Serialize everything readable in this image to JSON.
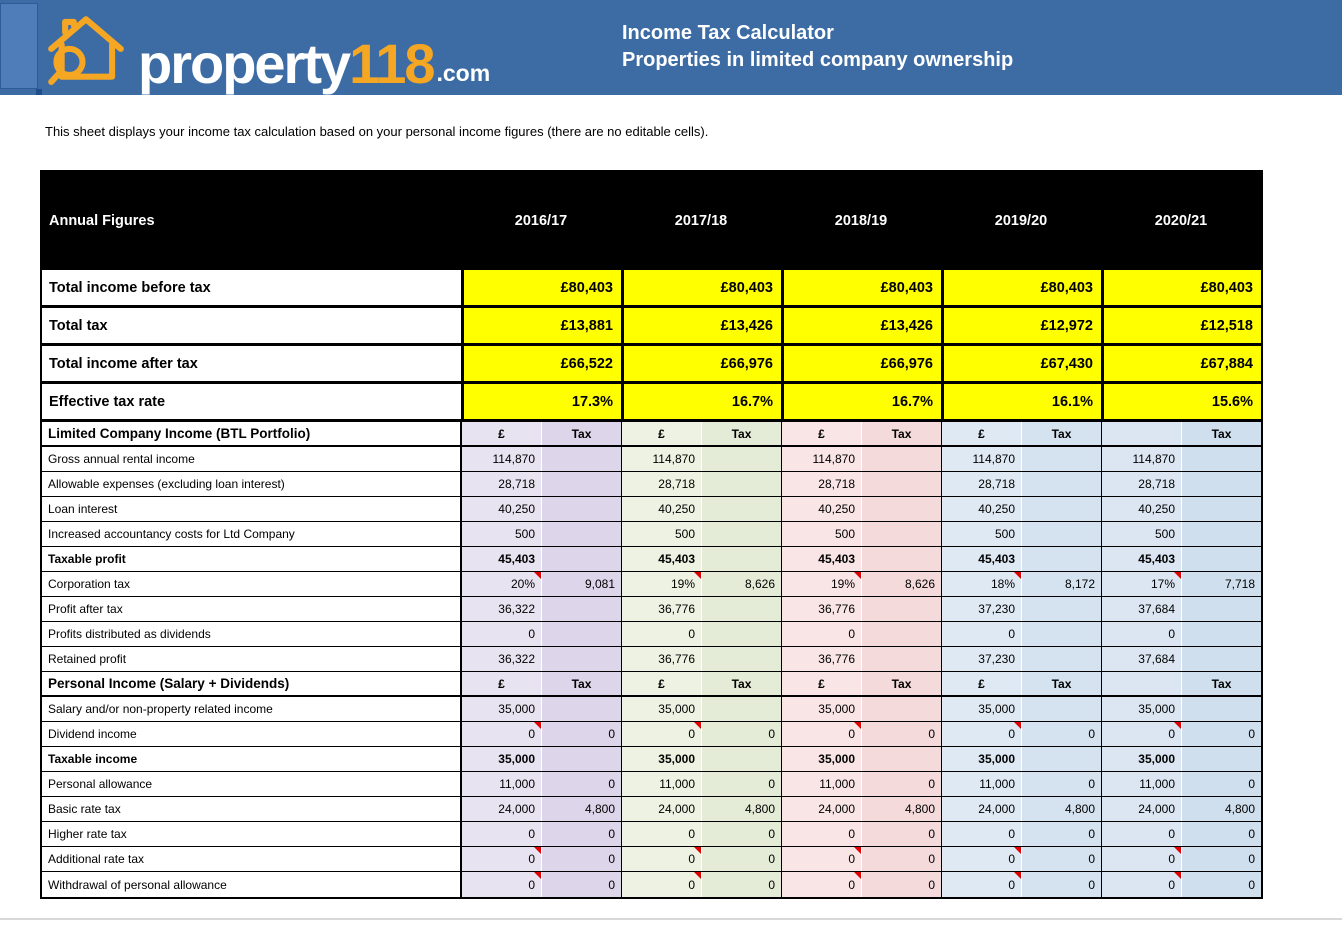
{
  "banner": {
    "logo": {
      "icon": "house-magnifier-icon",
      "text_main": "property",
      "text_number": "118",
      "text_suffix": ".com"
    },
    "title_line1": "Income Tax Calculator",
    "title_line2": "Properties in limited company ownership"
  },
  "intro_text": "This sheet displays your income tax calculation based on your personal income figures (there are no editable cells).",
  "colors": {
    "banner_blue": "#3d6ca5",
    "logo_orange": "#F5A623",
    "highlight_yellow": "#ffff00",
    "header_black": "#000000",
    "comment_red": "#e00000",
    "year_columns": [
      {
        "amount": "#e8e3f0",
        "tax": "#ddd5e9"
      },
      {
        "amount": "#edf2e2",
        "tax": "#e4ecd7"
      },
      {
        "amount": "#f9e5e5",
        "tax": "#f4dada"
      },
      {
        "amount": "#dfe9f3",
        "tax": "#d5e3f0"
      },
      {
        "amount": "#dbe6f2",
        "tax": "#d0dfee"
      }
    ]
  },
  "table": {
    "header_label": "Annual Figures",
    "years": [
      "2016/17",
      "2017/18",
      "2018/19",
      "2019/20",
      "2020/21"
    ],
    "summary_rows": [
      {
        "label": "Total income before tax",
        "values": [
          "£80,403",
          "£80,403",
          "£80,403",
          "£80,403",
          "£80,403"
        ]
      },
      {
        "label": "Total tax",
        "values": [
          "£13,881",
          "£13,426",
          "£13,426",
          "£12,972",
          "£12,518"
        ]
      },
      {
        "label": "Total income after tax",
        "values": [
          "£66,522",
          "£66,976",
          "£66,976",
          "£67,430",
          "£67,884"
        ]
      },
      {
        "label": "Effective tax rate",
        "values": [
          "17.3%",
          "16.7%",
          "16.7%",
          "16.1%",
          "15.6%"
        ]
      }
    ],
    "sub_header_amount": [
      "£",
      "£",
      "£",
      "£",
      ""
    ],
    "sub_header_tax": [
      "Tax",
      "Tax",
      "Tax",
      "Tax",
      "Tax"
    ],
    "sections": [
      {
        "title": "Limited Company Income (BTL Portfolio)",
        "rows": [
          {
            "label": "Gross annual rental income",
            "bold": false,
            "marker": false,
            "amounts": [
              "114,870",
              "114,870",
              "114,870",
              "114,870",
              "114,870"
            ],
            "taxes": [
              "",
              "",
              "",
              "",
              ""
            ]
          },
          {
            "label": "Allowable expenses (excluding loan interest)",
            "bold": false,
            "marker": false,
            "amounts": [
              "28,718",
              "28,718",
              "28,718",
              "28,718",
              "28,718"
            ],
            "taxes": [
              "",
              "",
              "",
              "",
              ""
            ]
          },
          {
            "label": "Loan interest",
            "bold": false,
            "marker": false,
            "amounts": [
              "40,250",
              "40,250",
              "40,250",
              "40,250",
              "40,250"
            ],
            "taxes": [
              "",
              "",
              "",
              "",
              ""
            ]
          },
          {
            "label": "Increased accountancy costs for Ltd Company",
            "bold": false,
            "marker": false,
            "amounts": [
              "500",
              "500",
              "500",
              "500",
              "500"
            ],
            "taxes": [
              "",
              "",
              "",
              "",
              ""
            ]
          },
          {
            "label": "Taxable profit",
            "bold": true,
            "marker": false,
            "amounts": [
              "45,403",
              "45,403",
              "45,403",
              "45,403",
              "45,403"
            ],
            "taxes": [
              "",
              "",
              "",
              "",
              ""
            ]
          },
          {
            "label": "Corporation tax",
            "bold": false,
            "marker": true,
            "amounts": [
              "20%",
              "19%",
              "19%",
              "18%",
              "17%"
            ],
            "taxes": [
              "9,081",
              "8,626",
              "8,626",
              "8,172",
              "7,718"
            ]
          },
          {
            "label": "Profit after tax",
            "bold": false,
            "marker": false,
            "amounts": [
              "36,322",
              "36,776",
              "36,776",
              "37,230",
              "37,684"
            ],
            "taxes": [
              "",
              "",
              "",
              "",
              ""
            ]
          },
          {
            "label": "Profits distributed as dividends",
            "bold": false,
            "marker": false,
            "amounts": [
              "0",
              "0",
              "0",
              "0",
              "0"
            ],
            "taxes": [
              "",
              "",
              "",
              "",
              ""
            ]
          },
          {
            "label": "Retained profit",
            "bold": false,
            "marker": false,
            "amounts": [
              "36,322",
              "36,776",
              "36,776",
              "37,230",
              "37,684"
            ],
            "taxes": [
              "",
              "",
              "",
              "",
              ""
            ]
          }
        ]
      },
      {
        "title": "Personal Income (Salary + Dividends)",
        "rows": [
          {
            "label": "Salary and/or non-property related income",
            "bold": false,
            "marker": false,
            "amounts": [
              "35,000",
              "35,000",
              "35,000",
              "35,000",
              "35,000"
            ],
            "taxes": [
              "",
              "",
              "",
              "",
              ""
            ]
          },
          {
            "label": "Dividend income",
            "bold": false,
            "marker": true,
            "amounts": [
              "0",
              "0",
              "0",
              "0",
              "0"
            ],
            "taxes": [
              "0",
              "0",
              "0",
              "0",
              "0"
            ]
          },
          {
            "label": "Taxable income",
            "bold": true,
            "marker": false,
            "amounts": [
              "35,000",
              "35,000",
              "35,000",
              "35,000",
              "35,000"
            ],
            "taxes": [
              "",
              "",
              "",
              "",
              ""
            ]
          },
          {
            "label": "Personal allowance",
            "bold": false,
            "marker": false,
            "amounts": [
              "11,000",
              "11,000",
              "11,000",
              "11,000",
              "11,000"
            ],
            "taxes": [
              "0",
              "0",
              "0",
              "0",
              "0"
            ]
          },
          {
            "label": "Basic rate tax",
            "bold": false,
            "marker": false,
            "amounts": [
              "24,000",
              "24,000",
              "24,000",
              "24,000",
              "24,000"
            ],
            "taxes": [
              "4,800",
              "4,800",
              "4,800",
              "4,800",
              "4,800"
            ]
          },
          {
            "label": "Higher rate tax",
            "bold": false,
            "marker": false,
            "amounts": [
              "0",
              "0",
              "0",
              "0",
              "0"
            ],
            "taxes": [
              "0",
              "0",
              "0",
              "0",
              "0"
            ]
          },
          {
            "label": "Additional rate tax",
            "bold": false,
            "marker": true,
            "amounts": [
              "0",
              "0",
              "0",
              "0",
              "0"
            ],
            "taxes": [
              "0",
              "0",
              "0",
              "0",
              "0"
            ]
          },
          {
            "label": "Withdrawal of personal allowance",
            "bold": false,
            "marker": true,
            "amounts": [
              "0",
              "0",
              "0",
              "0",
              "0"
            ],
            "taxes": [
              "0",
              "0",
              "0",
              "0",
              "0"
            ]
          }
        ]
      }
    ]
  }
}
